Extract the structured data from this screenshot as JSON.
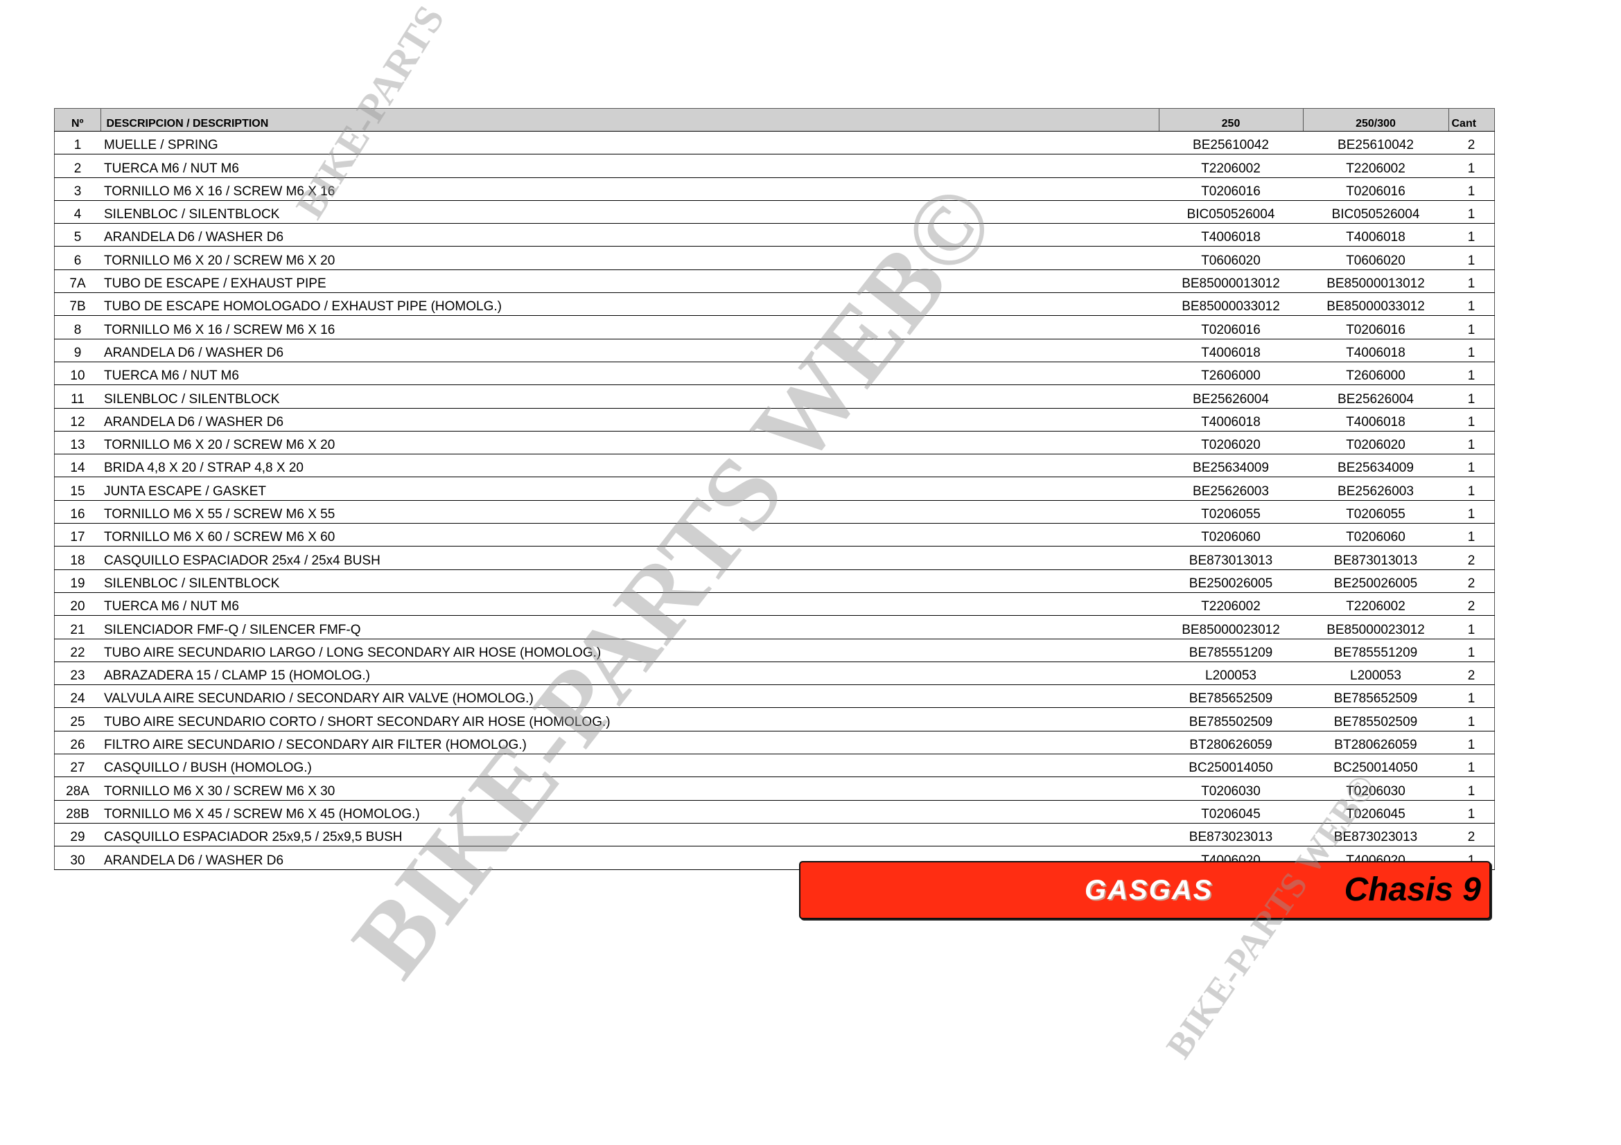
{
  "table": {
    "headers": {
      "no": "Nº",
      "desc": "DESCRIPCION / DESCRIPTION",
      "col250": "250",
      "col250_300": "250/300",
      "cant": "Cant"
    },
    "rows": [
      {
        "no": "1",
        "desc": "MUELLE / SPRING",
        "p250": "BE25610042",
        "p250_300": "BE25610042",
        "cant": "2"
      },
      {
        "no": "2",
        "desc": "TUERCA M6 / NUT M6",
        "p250": "T2206002",
        "p250_300": "T2206002",
        "cant": "1"
      },
      {
        "no": "3",
        "desc": "TORNILLO M6 X 16 / SCREW M6 X 16",
        "p250": "T0206016",
        "p250_300": "T0206016",
        "cant": "1"
      },
      {
        "no": "4",
        "desc": "SILENBLOC / SILENTBLOCK",
        "p250": "BIC050526004",
        "p250_300": "BIC050526004",
        "cant": "1"
      },
      {
        "no": "5",
        "desc": "ARANDELA D6 / WASHER D6",
        "p250": "T4006018",
        "p250_300": "T4006018",
        "cant": "1"
      },
      {
        "no": "6",
        "desc": "TORNILLO M6 X 20 / SCREW M6 X 20",
        "p250": "T0606020",
        "p250_300": "T0606020",
        "cant": "1"
      },
      {
        "no": "7A",
        "desc": "TUBO DE ESCAPE / EXHAUST PIPE",
        "p250": "BE85000013012",
        "p250_300": "BE85000013012",
        "cant": "1"
      },
      {
        "no": "7B",
        "desc": "TUBO DE ESCAPE HOMOLOGADO / EXHAUST PIPE (HOMOLG.)",
        "p250": "BE85000033012",
        "p250_300": "BE85000033012",
        "cant": "1"
      },
      {
        "no": "8",
        "desc": "TORNILLO M6 X 16 / SCREW M6 X 16",
        "p250": "T0206016",
        "p250_300": "T0206016",
        "cant": "1"
      },
      {
        "no": "9",
        "desc": "ARANDELA D6 / WASHER D6",
        "p250": "T4006018",
        "p250_300": "T4006018",
        "cant": "1"
      },
      {
        "no": "10",
        "desc": "TUERCA M6 / NUT M6",
        "p250": "T2606000",
        "p250_300": "T2606000",
        "cant": "1"
      },
      {
        "no": "11",
        "desc": "SILENBLOC / SILENTBLOCK",
        "p250": "BE25626004",
        "p250_300": "BE25626004",
        "cant": "1"
      },
      {
        "no": "12",
        "desc": "ARANDELA D6 / WASHER D6",
        "p250": "T4006018",
        "p250_300": "T4006018",
        "cant": "1"
      },
      {
        "no": "13",
        "desc": "TORNILLO M6 X 20 / SCREW M6 X 20",
        "p250": "T0206020",
        "p250_300": "T0206020",
        "cant": "1"
      },
      {
        "no": "14",
        "desc": "BRIDA 4,8 X 20 / STRAP 4,8 X 20",
        "p250": "BE25634009",
        "p250_300": "BE25634009",
        "cant": "1"
      },
      {
        "no": "15",
        "desc": "JUNTA ESCAPE / GASKET",
        "p250": "BE25626003",
        "p250_300": "BE25626003",
        "cant": "1"
      },
      {
        "no": "16",
        "desc": "TORNILLO M6 X 55 / SCREW M6 X 55",
        "p250": "T0206055",
        "p250_300": "T0206055",
        "cant": "1"
      },
      {
        "no": "17",
        "desc": "TORNILLO M6 X 60 / SCREW M6 X 60",
        "p250": "T0206060",
        "p250_300": "T0206060",
        "cant": "1"
      },
      {
        "no": "18",
        "desc": "CASQUILLO ESPACIADOR 25x4 / 25x4 BUSH",
        "p250": "BE873013013",
        "p250_300": "BE873013013",
        "cant": "2"
      },
      {
        "no": "19",
        "desc": "SILENBLOC / SILENTBLOCK",
        "p250": "BE250026005",
        "p250_300": "BE250026005",
        "cant": "2"
      },
      {
        "no": "20",
        "desc": "TUERCA M6 / NUT M6",
        "p250": "T2206002",
        "p250_300": "T2206002",
        "cant": "2"
      },
      {
        "no": "21",
        "desc": "SILENCIADOR FMF-Q / SILENCER FMF-Q",
        "p250": "BE85000023012",
        "p250_300": "BE85000023012",
        "cant": "1"
      },
      {
        "no": "22",
        "desc": "TUBO AIRE SECUNDARIO LARGO / LONG SECONDARY AIR HOSE (HOMOLOG.)",
        "p250": "BE785551209",
        "p250_300": "BE785551209",
        "cant": "1"
      },
      {
        "no": "23",
        "desc": "ABRAZADERA 15 / CLAMP 15 (HOMOLOG.)",
        "p250": "L200053",
        "p250_300": "L200053",
        "cant": "2"
      },
      {
        "no": "24",
        "desc": "VALVULA AIRE SECUNDARIO / SECONDARY AIR VALVE (HOMOLOG.)",
        "p250": "BE785652509",
        "p250_300": "BE785652509",
        "cant": "1"
      },
      {
        "no": "25",
        "desc": "TUBO AIRE SECUNDARIO CORTO / SHORT SECONDARY AIR HOSE (HOMOLOG.)",
        "p250": "BE785502509",
        "p250_300": "BE785502509",
        "cant": "1"
      },
      {
        "no": "26",
        "desc": "FILTRO AIRE SECUNDARIO / SECONDARY AIR FILTER (HOMOLOG.)",
        "p250": "BT280626059",
        "p250_300": "BT280626059",
        "cant": "1"
      },
      {
        "no": "27",
        "desc": "CASQUILLO / BUSH (HOMOLOG.)",
        "p250": "BC250014050",
        "p250_300": "BC250014050",
        "cant": "1"
      },
      {
        "no": "28A",
        "desc": "TORNILLO M6 X 30 / SCREW M6 X 30",
        "p250": "T0206030",
        "p250_300": "T0206030",
        "cant": "1"
      },
      {
        "no": "28B",
        "desc": "TORNILLO M6 X 45 / SCREW M6 X 45 (HOMOLOG.)",
        "p250": "T0206045",
        "p250_300": "T0206045",
        "cant": "1"
      },
      {
        "no": "29",
        "desc": "CASQUILLO ESPACIADOR 25x9,5 / 25x9,5 BUSH",
        "p250": "BE873023013",
        "p250_300": "BE873023013",
        "cant": "2"
      },
      {
        "no": "30",
        "desc": "ARANDELA D6 / WASHER D6",
        "p250": "T4006020",
        "p250_300": "T4006020",
        "cant": "1"
      }
    ]
  },
  "banner": {
    "brand": "GASGAS",
    "title": "Chasis 9",
    "color": "#ff2d12"
  },
  "watermark": "BIKE-PARTS WEB©"
}
